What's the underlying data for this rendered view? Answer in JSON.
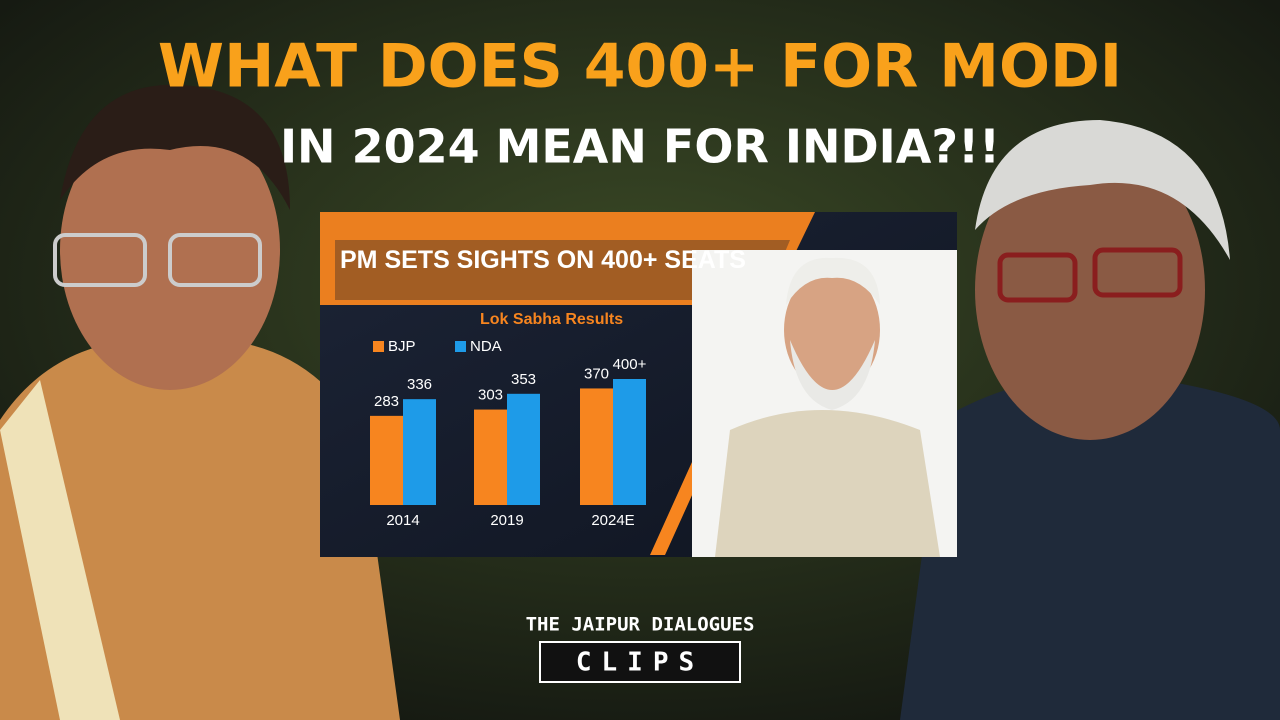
{
  "headline": {
    "line1": "WHAT DOES 400+ FOR MODI",
    "line2": "IN 2024 MEAN FOR INDIA?!!"
  },
  "chart_data": {
    "type": "bar",
    "title": "PM SETS SIGHTS ON 400+ SEATS",
    "subtitle": "Lok Sabha Results",
    "categories": [
      "2014",
      "2019",
      "2024E"
    ],
    "series": [
      {
        "name": "BJP",
        "color": "#f7851f",
        "values": [
          283,
          303,
          370
        ]
      },
      {
        "name": "NDA",
        "color": "#1e9be8",
        "values": [
          336,
          353,
          400
        ],
        "value_labels": [
          "336",
          "353",
          "400+"
        ]
      }
    ]
  },
  "branding": {
    "name": "THE JAIPUR DIALOGUES",
    "sub": "CLIPS"
  }
}
